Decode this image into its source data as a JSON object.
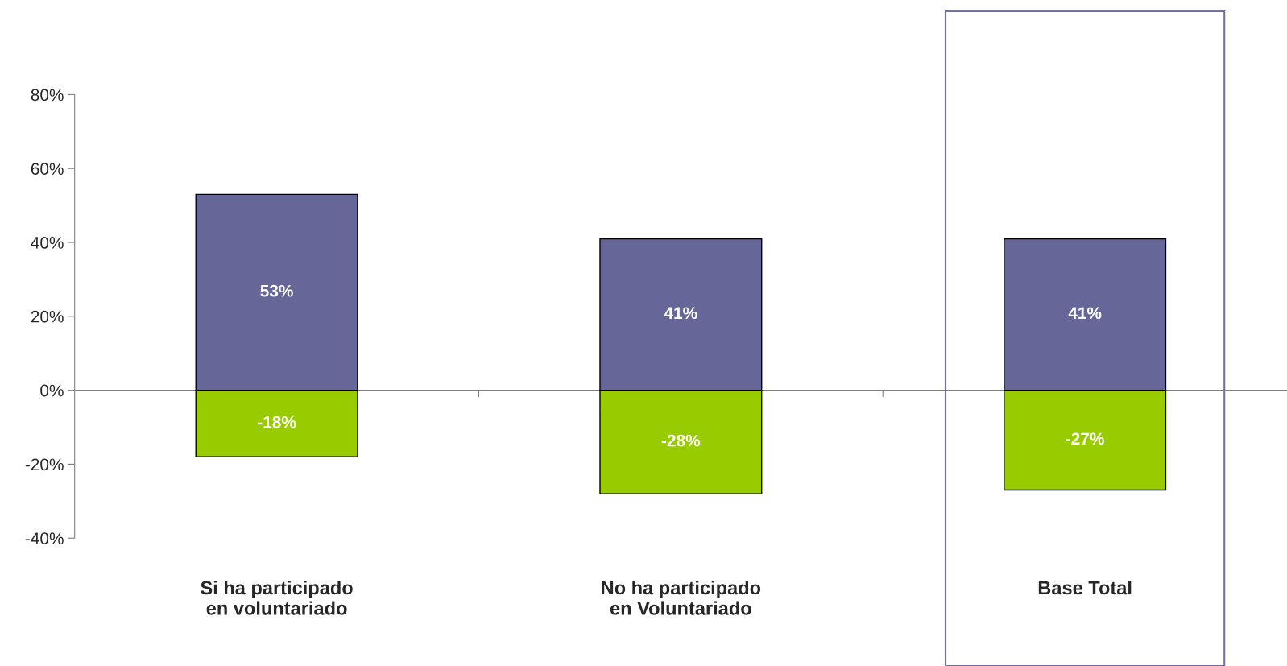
{
  "chart_data": {
    "type": "bar",
    "categories": [
      "Si ha participado\nen voluntariado",
      "No ha participado\nen Voluntariado",
      "Base Total"
    ],
    "series": [
      {
        "color": "#666699",
        "values": [
          53,
          41,
          41
        ],
        "value_labels": [
          "53%",
          "41%",
          "41%"
        ]
      },
      {
        "color": "#99cc00",
        "values": [
          -18,
          -28,
          -27
        ],
        "value_labels": [
          "-18%",
          "-28%",
          "-27%"
        ]
      }
    ],
    "ylim": [
      -40,
      80
    ],
    "yticks": [
      {
        "value": -40,
        "label": "-40%"
      },
      {
        "value": -20,
        "label": "-20%"
      },
      {
        "value": 0,
        "label": "0%"
      },
      {
        "value": 20,
        "label": "20%"
      },
      {
        "value": 40,
        "label": "40%"
      },
      {
        "value": 60,
        "label": "60%"
      },
      {
        "value": 80,
        "label": "80%"
      }
    ],
    "stacked": true,
    "legend": false
  }
}
